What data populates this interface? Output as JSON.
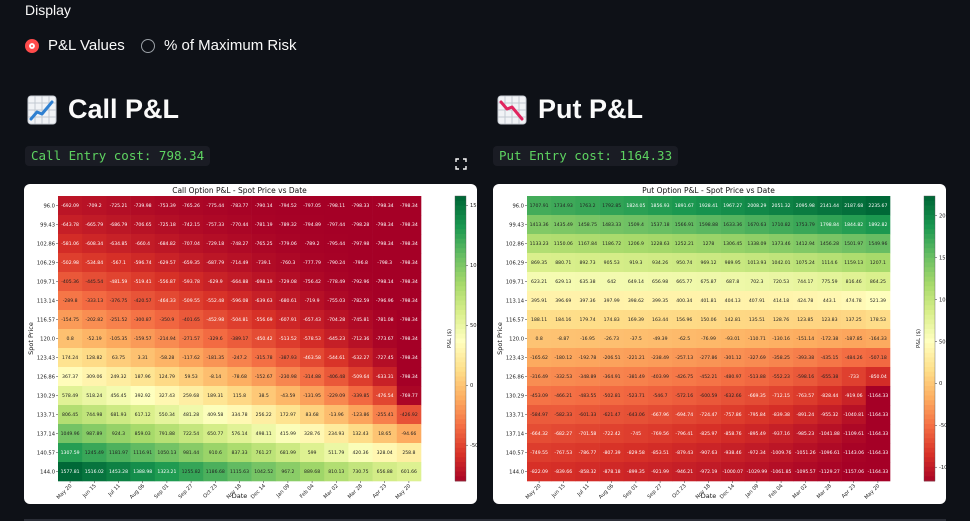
{
  "display": {
    "label": "Display",
    "options": [
      "P&L Values",
      "% of Maximum Risk"
    ],
    "selected": "P&L Values"
  },
  "call": {
    "heading": "Call P&L",
    "cost_label": "Call Entry cost: 798.34",
    "icon": "chart-increasing-icon",
    "chart_data": {
      "type": "heatmap",
      "title": "Call Option P&L - Spot Price vs Date",
      "xlabel": "Date",
      "ylabel": "Spot Price",
      "colorbar_label": "P&L ($)",
      "colormap": "RdYlGn",
      "vmin": -798.34,
      "vmax": 1577.81,
      "colorbar_ticks": [
        1500,
        1000,
        500,
        0,
        -500
      ],
      "y_labels": [
        "96.0",
        "99.43",
        "102.86",
        "106.29",
        "109.71",
        "113.14",
        "116.57",
        "120.0",
        "123.43",
        "126.86",
        "130.29",
        "133.71",
        "137.14",
        "140.57",
        "144.0"
      ],
      "x_labels": [
        "May 20",
        "Jun 15",
        "Jul 11",
        "Aug 06",
        "Sep 01",
        "Sep 27",
        "Oct 23",
        "Nov 18",
        "Dec 14",
        "Jan 09",
        "Feb 04",
        "Mar 02",
        "Mar 28",
        "Apr 23",
        "May 20"
      ],
      "values": [
        [
          -692.09,
          -709.2,
          -725.21,
          -739.98,
          -753.39,
          -765.26,
          -775.44,
          -783.77,
          -790.14,
          -794.52,
          -797.05,
          -798.11,
          -798.33,
          -798.34,
          -798.34
        ],
        [
          -643.78,
          -665.79,
          -686.79,
          -706.65,
          -725.18,
          -742.15,
          -757.33,
          -770.44,
          -781.19,
          -789.32,
          -794.89,
          -797.44,
          -798.28,
          -798.34,
          -798.34
        ],
        [
          -581.06,
          -608.34,
          -634.85,
          -660.4,
          -684.82,
          -707.04,
          -729.18,
          -748.27,
          -765.25,
          -779.06,
          -789.2,
          -795.44,
          -797.98,
          -798.34,
          -798.34
        ],
        [
          -502.98,
          -534.84,
          -567.1,
          -596.74,
          -629.57,
          -659.35,
          -687.79,
          -714.49,
          -739.1,
          -760.3,
          -777.79,
          -790.24,
          -796.8,
          -798.3,
          -798.34
        ],
        [
          -405.36,
          -445.54,
          -481.59,
          -519.41,
          -556.87,
          -593.78,
          -629.9,
          -664.88,
          -698.19,
          -729.08,
          -756.42,
          -778.49,
          -792.96,
          -798.14,
          -798.34
        ],
        [
          -289.8,
          -333.13,
          -376.75,
          -420.57,
          -464.33,
          -509.55,
          -552.48,
          -596.08,
          -639.63,
          -680.61,
          -719.9,
          -755.03,
          -782.59,
          -796.96,
          -798.34
        ],
        [
          -154.75,
          -202.82,
          -251.52,
          -300.87,
          -350.9,
          -401.65,
          -452.98,
          -504.81,
          -556.69,
          -607.91,
          -657.43,
          -704.28,
          -745.81,
          -781.08,
          -798.34
        ],
        [
          0.8,
          -52.19,
          -105.35,
          -159.57,
          -214.94,
          -271.57,
          -329.6,
          -389.17,
          -450.42,
          -513.52,
          -578.53,
          -645.23,
          -712.36,
          -773.67,
          -798.34
        ],
        [
          174.24,
          128.82,
          63.75,
          3.31,
          -58.28,
          -117.62,
          -181.35,
          -247.2,
          -315.78,
          -387.93,
          -463.58,
          -544.61,
          -632.27,
          -727.45,
          -798.34
        ],
        [
          367.37,
          309.06,
          249.32,
          187.96,
          124.79,
          59.53,
          -8.14,
          -78.68,
          -152.67,
          -230.98,
          -314.88,
          -406.48,
          -509.64,
          -633.31,
          -798.34
        ],
        [
          578.49,
          518.24,
          456.45,
          392.92,
          327.43,
          259.68,
          189.31,
          115.8,
          38.5,
          -43.59,
          -131.95,
          -229.09,
          -339.85,
          -476.54,
          -769.77
        ],
        [
          806.45,
          744.98,
          681.93,
          617.12,
          550.34,
          481.28,
          409.58,
          334.78,
          256.22,
          172.97,
          83.68,
          -13.96,
          -123.86,
          -255.41,
          -426.92
        ],
        [
          1049.96,
          987.89,
          924.3,
          859.03,
          791.88,
          722.54,
          650.77,
          576.14,
          498.11,
          415.99,
          328.76,
          234.93,
          132.43,
          18.65,
          -94.66
        ],
        [
          1307.59,
          1245.49,
          1181.97,
          1116.91,
          1050.13,
          981.44,
          910.6,
          837.33,
          761.27,
          681.99,
          599.0,
          511.79,
          420.36,
          328.04,
          258.8
        ],
        [
          1577.81,
          1516.02,
          1453.28,
          1388.98,
          1323.21,
          1255.82,
          1186.68,
          1115.63,
          1042.52,
          967.2,
          889.68,
          810.13,
          730.75,
          656.88,
          601.66
        ]
      ]
    }
  },
  "put": {
    "heading": "Put P&L",
    "cost_label": "Put Entry cost: 1164.33",
    "icon": "chart-decreasing-icon",
    "chart_data": {
      "type": "heatmap",
      "title": "Put Option P&L - Spot Price vs Date",
      "xlabel": "Date",
      "ylabel": "Spot Price",
      "colorbar_label": "P&L ($)",
      "colormap": "RdYlGn",
      "vmin": -1164.33,
      "vmax": 2235.67,
      "colorbar_ticks": [
        2000,
        1500,
        1000,
        500,
        0,
        -500,
        -1000
      ],
      "y_labels": [
        "96.0",
        "99.43",
        "102.86",
        "106.29",
        "109.71",
        "113.14",
        "116.57",
        "120.0",
        "123.43",
        "126.86",
        "130.29",
        "133.71",
        "137.14",
        "140.57",
        "144.0"
      ],
      "x_labels": [
        "May 20",
        "Jun 15",
        "Jul 11",
        "Aug 06",
        "Sep 01",
        "Sep 27",
        "Oct 23",
        "Nov 18",
        "Dec 14",
        "Jan 09",
        "Feb 04",
        "Mar 02",
        "Mar 28",
        "Apr 23",
        "May 20"
      ],
      "values": [
        [
          1707.91,
          1734.93,
          1763.2,
          1792.85,
          1824.05,
          1856.93,
          1891.67,
          1928.41,
          1967.27,
          2008.29,
          2051.32,
          2095.98,
          2141.44,
          2187.68,
          2235.67
        ],
        [
          1413.36,
          1435.49,
          1458.75,
          1483.33,
          1509.4,
          1537.18,
          1566.91,
          1598.88,
          1633.36,
          1670.63,
          1710.82,
          1753.79,
          1798.84,
          1844.82,
          1892.82
        ],
        [
          1133.23,
          1150.06,
          1167.84,
          1186.72,
          1206.9,
          1228.63,
          1252.21,
          1278.0,
          1306.45,
          1338.09,
          1373.46,
          1412.94,
          1456.28,
          1501.97,
          1549.96
        ],
        [
          869.35,
          880.71,
          892.73,
          905.53,
          919.3,
          934.26,
          950.74,
          969.12,
          989.95,
          1013.93,
          1042.01,
          1075.24,
          1114.6,
          1159.13,
          1207.1
        ],
        [
          623.21,
          629.13,
          635.38,
          642.0,
          649.14,
          656.98,
          665.77,
          675.87,
          687.8,
          702.3,
          720.53,
          744.17,
          775.59,
          816.46,
          864.25
        ],
        [
          395.91,
          396.69,
          397.36,
          397.99,
          398.62,
          399.35,
          400.34,
          401.81,
          404.13,
          407.91,
          414.18,
          424.78,
          443.1,
          474.78,
          521.39
        ],
        [
          188.11,
          184.16,
          179.74,
          174.83,
          169.39,
          163.44,
          156.96,
          150.06,
          142.81,
          135.51,
          128.76,
          123.85,
          123.83,
          137.25,
          178.53
        ],
        [
          0.8,
          -8.87,
          -16.95,
          -26.73,
          -37.5,
          -49.39,
          -62.5,
          -76.99,
          -93.01,
          -110.71,
          -130.16,
          -151.14,
          -172.38,
          -187.85,
          -164.33
        ],
        [
          -165.62,
          -180.12,
          -192.78,
          -206.51,
          -221.21,
          -238.49,
          -257.13,
          -277.86,
          -301.12,
          -327.69,
          -358.25,
          -393.38,
          -435.15,
          -484.26,
          -507.18
        ],
        [
          -316.49,
          -332.53,
          -348.89,
          -364.91,
          -381.49,
          -403.99,
          -426.75,
          -452.21,
          -480.97,
          -513.88,
          -552.23,
          -598.16,
          -655.38,
          -733.0,
          -850.04
        ],
        [
          -453.09,
          -466.21,
          -483.55,
          -502.81,
          -523.71,
          -546.7,
          -572.16,
          -600.59,
          -632.66,
          -669.35,
          -712.15,
          -763.57,
          -828.44,
          -919.06,
          -1164.33
        ],
        [
          -584.97,
          -582.33,
          -601.33,
          -621.47,
          -643.06,
          -667.96,
          -694.74,
          -724.47,
          -757.86,
          -795.84,
          -839.38,
          -891.24,
          -955.32,
          -1040.81,
          -1164.33
        ],
        [
          -664.32,
          -682.27,
          -701.58,
          -722.42,
          -745.0,
          -769.56,
          -796.41,
          -825.97,
          -858.76,
          -895.49,
          -937.16,
          -985.23,
          -1041.88,
          -1109.61,
          -1164.33
        ],
        [
          -749.55,
          -767.53,
          -786.77,
          -807.39,
          -829.58,
          -853.51,
          -879.43,
          -907.63,
          -938.46,
          -972.34,
          -1009.76,
          -1051.26,
          -1096.61,
          -1143.06,
          -1164.33
        ],
        [
          -822.09,
          -839.66,
          -858.32,
          -878.18,
          -899.35,
          -921.99,
          -946.21,
          -972.19,
          -1000.07,
          -1029.99,
          -1061.85,
          -1095.57,
          -1129.27,
          -1157.06,
          -1164.33
        ]
      ]
    }
  }
}
